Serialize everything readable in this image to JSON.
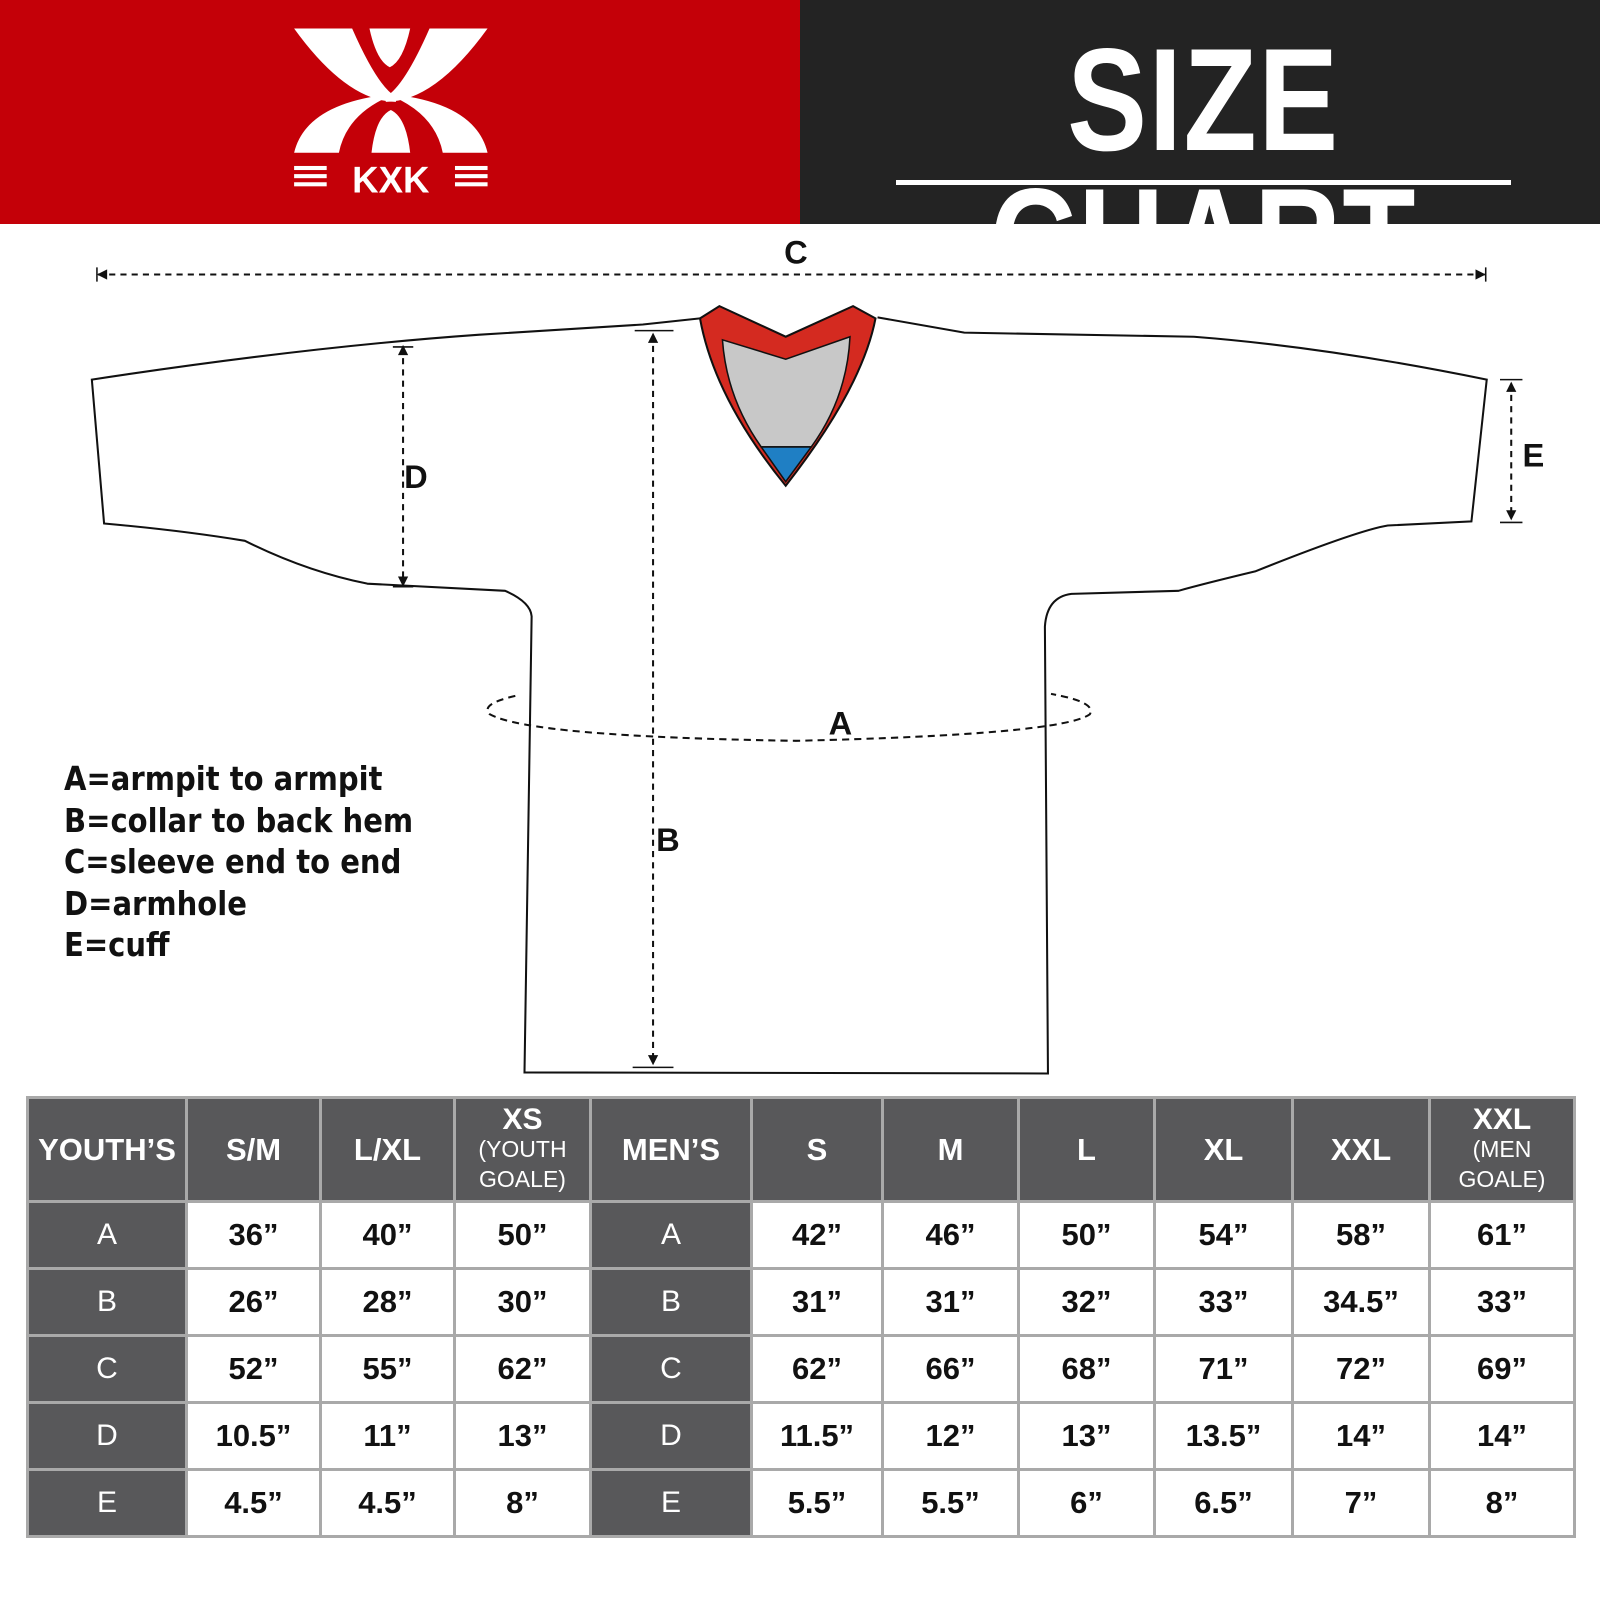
{
  "brand": {
    "logo_text": "KXK",
    "red": "#c40008",
    "dark": "#232323"
  },
  "title": "SIZE CHART",
  "diagram": {
    "labels": {
      "A": "A",
      "B": "B",
      "C": "C",
      "D": "D",
      "E": "E"
    },
    "collar_colors": {
      "trim": "#d42a20",
      "inner": "#c8c8c8",
      "tip": "#1f7fc4"
    }
  },
  "legend": [
    "A=armpit to armpit",
    "B=collar to back hem",
    "C=sleeve end to end",
    "D=armhole",
    "E=cuff"
  ],
  "table": {
    "headers": [
      {
        "main": "YOUTH’S"
      },
      {
        "main": "S/M"
      },
      {
        "main": "L/XL"
      },
      {
        "main": "XS",
        "sub": "(YOUTH GOALE)"
      },
      {
        "main": "MEN’S"
      },
      {
        "main": "S"
      },
      {
        "main": "M"
      },
      {
        "main": "L"
      },
      {
        "main": "XL"
      },
      {
        "main": "XXL"
      },
      {
        "main": "XXL",
        "sub": "(MEN GOALE)"
      }
    ],
    "rows": [
      {
        "label": "A",
        "youth": [
          "36”",
          "40”",
          "50”"
        ],
        "label2": "A",
        "men": [
          "42”",
          "46”",
          "50”",
          "54”",
          "58”",
          "61”"
        ]
      },
      {
        "label": "B",
        "youth": [
          "26”",
          "28”",
          "30”"
        ],
        "label2": "B",
        "men": [
          "31”",
          "31”",
          "32”",
          "33”",
          "34.5”",
          "33”"
        ]
      },
      {
        "label": "C",
        "youth": [
          "52”",
          "55”",
          "62”"
        ],
        "label2": "C",
        "men": [
          "62”",
          "66”",
          "68”",
          "71”",
          "72”",
          "69”"
        ]
      },
      {
        "label": "D",
        "youth": [
          "10.5”",
          "11”",
          "13”"
        ],
        "label2": "D",
        "men": [
          "11.5”",
          "12”",
          "13”",
          "13.5”",
          "14”",
          "14”"
        ]
      },
      {
        "label": "E",
        "youth": [
          "4.5”",
          "4.5”",
          "8”"
        ],
        "label2": "E",
        "men": [
          "5.5”",
          "5.5”",
          "6”",
          "6.5”",
          "7”",
          "8”"
        ]
      }
    ]
  }
}
